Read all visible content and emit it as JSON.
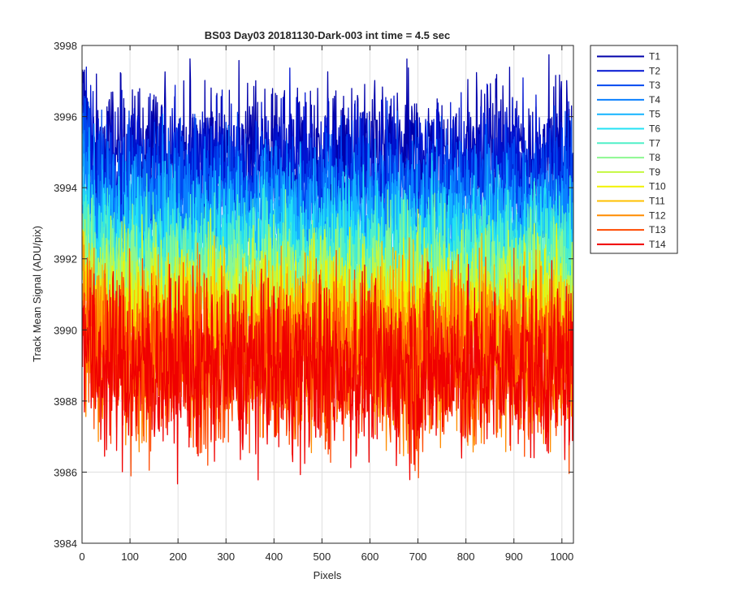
{
  "chart_data": {
    "type": "line",
    "title": "BS03 Day03 20181130-Dark-003 int time = 4.5 sec",
    "xlabel": "Pixels",
    "ylabel": "Track Mean Signal (ADU/pix)",
    "xlim": [
      0,
      1024
    ],
    "ylim": [
      3984,
      3998
    ],
    "x_ticks": [
      0,
      100,
      200,
      300,
      400,
      500,
      600,
      700,
      800,
      900,
      1000
    ],
    "y_ticks": [
      3984,
      3986,
      3988,
      3990,
      3992,
      3994,
      3996,
      3998
    ],
    "grid": true,
    "legend_position": "outside-right",
    "series": [
      {
        "name": "T1",
        "color": "#0000aa",
        "mean": 3994.9,
        "min": 3992.6,
        "max": 3997.8
      },
      {
        "name": "T2",
        "color": "#0014d2",
        "mean": 3994.5,
        "min": 3992.3,
        "max": 3997.4
      },
      {
        "name": "T3",
        "color": "#0048f0",
        "mean": 3993.9,
        "min": 3991.8,
        "max": 3996.8
      },
      {
        "name": "T4",
        "color": "#0a80ff",
        "mean": 3993.3,
        "min": 3991.2,
        "max": 3996.2
      },
      {
        "name": "T5",
        "color": "#14b4ff",
        "mean": 3992.7,
        "min": 3990.6,
        "max": 3995.7
      },
      {
        "name": "T6",
        "color": "#24e2f4",
        "mean": 3992.2,
        "min": 3990.1,
        "max": 3995.1
      },
      {
        "name": "T7",
        "color": "#50f0c8",
        "mean": 3991.8,
        "min": 3989.6,
        "max": 3994.6
      },
      {
        "name": "T8",
        "color": "#8cf890",
        "mean": 3991.3,
        "min": 3989.1,
        "max": 3994.1
      },
      {
        "name": "T9",
        "color": "#c4f840",
        "mean": 3990.8,
        "min": 3988.6,
        "max": 3993.6
      },
      {
        "name": "T10",
        "color": "#f2f200",
        "mean": 3990.3,
        "min": 3988.1,
        "max": 3993.2
      },
      {
        "name": "T11",
        "color": "#ffc000",
        "mean": 3989.8,
        "min": 3987.2,
        "max": 3992.8
      },
      {
        "name": "T12",
        "color": "#ff8c00",
        "mean": 3989.4,
        "min": 3986.4,
        "max": 3992.6
      },
      {
        "name": "T13",
        "color": "#ff4a00",
        "mean": 3989.1,
        "min": 3985.7,
        "max": 3992.3
      },
      {
        "name": "T14",
        "color": "#f00000",
        "mean": 3988.9,
        "min": 3985.6,
        "max": 3992.0
      }
    ]
  }
}
